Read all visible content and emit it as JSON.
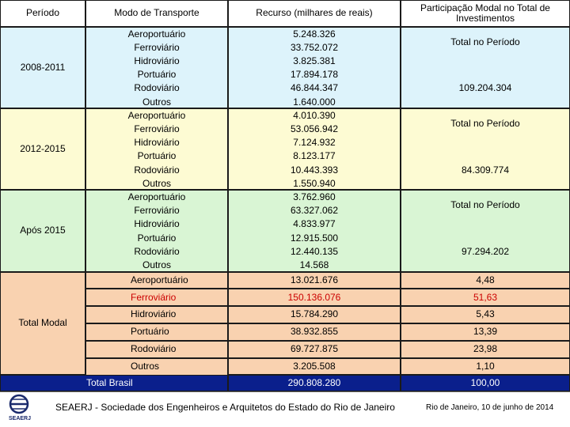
{
  "headers": {
    "periodo": "Período",
    "modo": "Modo de Transporte",
    "recurso": "Recurso (milhares de reais)",
    "participacao": "Participação Modal no Total de Investimentos"
  },
  "periods": [
    {
      "label": "2008-2011",
      "rows": [
        {
          "modo": "Aeroportuário",
          "recurso": "5.248.326"
        },
        {
          "modo": "Ferroviário",
          "recurso": "33.752.072"
        },
        {
          "modo": "Hidroviário",
          "recurso": "3.825.381"
        },
        {
          "modo": "Portuário",
          "recurso": "17.894.178"
        },
        {
          "modo": "Rodoviário",
          "recurso": "46.844.347"
        },
        {
          "modo": "Outros",
          "recurso": "1.640.000"
        }
      ],
      "total_label": "Total no Período",
      "total_value": "109.204.304"
    },
    {
      "label": "2012-2015",
      "rows": [
        {
          "modo": "Aeroportuário",
          "recurso": "4.010.390"
        },
        {
          "modo": "Ferroviário",
          "recurso": "53.056.942"
        },
        {
          "modo": "Hidroviário",
          "recurso": "7.124.932"
        },
        {
          "modo": "Portuário",
          "recurso": "8.123.177"
        },
        {
          "modo": "Rodoviário",
          "recurso": "10.443.393"
        },
        {
          "modo": "Outros",
          "recurso": "1.550.940"
        }
      ],
      "total_label": "Total no Período",
      "total_value": "84.309.774"
    },
    {
      "label": "Após 2015",
      "rows": [
        {
          "modo": "Aeroportuário",
          "recurso": "3.762.960"
        },
        {
          "modo": "Ferroviário",
          "recurso": "63.327.062"
        },
        {
          "modo": "Hidroviário",
          "recurso": "4.833.977"
        },
        {
          "modo": "Portuário",
          "recurso": "12.915.500"
        },
        {
          "modo": "Rodoviário",
          "recurso": "12.440.135"
        },
        {
          "modo": "Outros",
          "recurso": "14.568"
        }
      ],
      "total_label": "Total no Período",
      "total_value": "97.294.202"
    }
  ],
  "total_modal": {
    "label": "Total Modal",
    "rows": [
      {
        "modo": "Aeroportuário",
        "recurso": "13.021.676",
        "participacao": "4,48"
      },
      {
        "modo": "Ferroviário",
        "recurso": "150.136.076",
        "participacao": "51,63",
        "highlight": true
      },
      {
        "modo": "Hidroviário",
        "recurso": "15.784.290",
        "participacao": "5,43"
      },
      {
        "modo": "Portuário",
        "recurso": "38.932.855",
        "participacao": "13,39"
      },
      {
        "modo": "Rodoviário",
        "recurso": "69.727.875",
        "participacao": "23,98"
      },
      {
        "modo": "Outros",
        "recurso": "3.205.508",
        "participacao": "1,10"
      }
    ]
  },
  "total_brasil": {
    "label": "Total Brasil",
    "recurso": "290.808.280",
    "participacao": "100,00"
  },
  "footer": {
    "logo_text": "SEAERJ",
    "organization": "SEAERJ - Sociedade dos Engenheiros e Arquitetos do Estado do Rio de Janeiro",
    "date": "Rio de Janeiro, 10 de junho de 2014"
  },
  "colors": {
    "period1": "#ddf3fb",
    "period2": "#fdfbd3",
    "period3": "#d9f5d4",
    "total_modal": "#f9d2b0",
    "total_brasil": "#0a1f8c",
    "highlight_text": "#cc0000"
  }
}
